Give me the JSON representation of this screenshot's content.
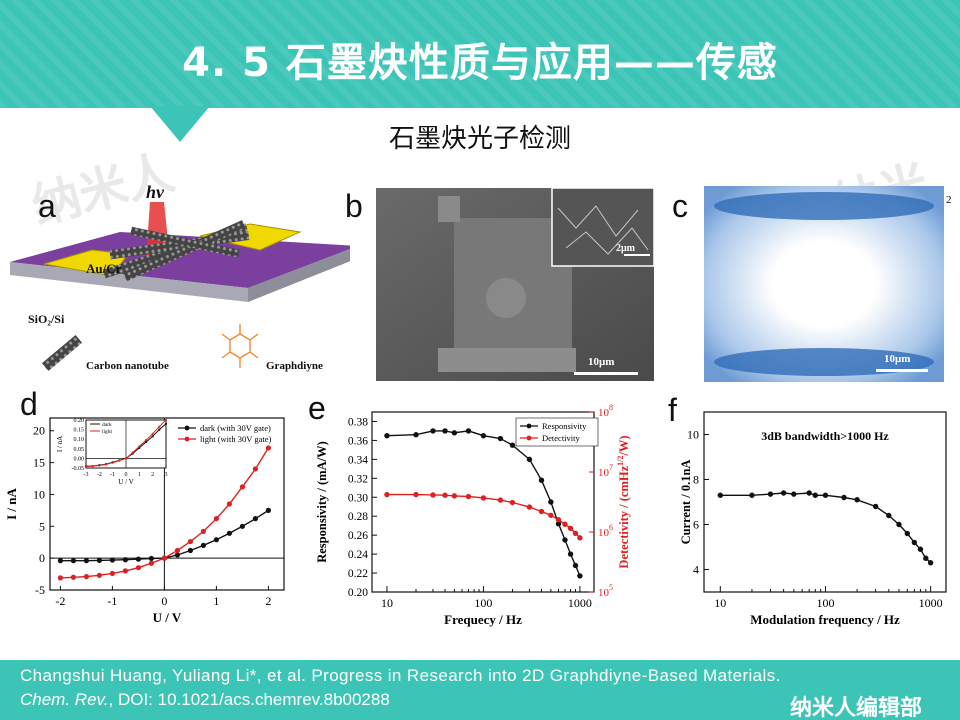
{
  "slide": {
    "title": "4. 5  石墨炔性质与应用——传感",
    "subtitle": "石墨炔光子检测"
  },
  "panels": {
    "a": "a",
    "b": "b",
    "c": "c",
    "d": "d",
    "e": "e",
    "f": "f"
  },
  "panel_a": {
    "hv": "hν",
    "electrode": "Au/Cr",
    "substrate": "SiO₂/Si",
    "cnt": "Carbon nanotube",
    "gdy": "Graphdiyne"
  },
  "panel_b": {
    "scale_main": "10μm",
    "scale_inset": "2μm"
  },
  "panel_c": {
    "scale": "10μm",
    "corner": "2"
  },
  "footer": {
    "line1": "Changshui Huang, Yuliang Li*, et al. Progress in Research into 2D Graphdiyne-Based Materials.",
    "journal": "Chem. Rev.",
    "doi": ", DOI: 10.1021/acs.chemrev.8b00288",
    "brand": "纳米人编辑部"
  },
  "watermark": "纳米人",
  "colors": {
    "banner": "#3cc5b7",
    "dark": "#111111",
    "light": "#e02020"
  },
  "chart_data": [
    {
      "panel": "d",
      "type": "line",
      "xlabel": "U / V",
      "ylabel": "I / nA",
      "xlim": [
        -2.2,
        2.3
      ],
      "ylim": [
        -5,
        22
      ],
      "xticks": [
        -2,
        -1,
        0,
        1,
        2
      ],
      "yticks": [
        -5,
        0,
        5,
        10,
        15,
        20
      ],
      "series": [
        {
          "name": "dark (with 30V gate)",
          "color": "#111111",
          "x": [
            -2,
            -1.75,
            -1.5,
            -1.25,
            -1,
            -0.75,
            -0.5,
            -0.25,
            0,
            0.25,
            0.5,
            0.75,
            1,
            1.25,
            1.5,
            1.75,
            2
          ],
          "y": [
            -0.4,
            -0.4,
            -0.4,
            -0.35,
            -0.3,
            -0.25,
            -0.15,
            -0.05,
            0,
            0.5,
            1.2,
            2,
            2.9,
            3.9,
            5,
            6.2,
            7.5
          ]
        },
        {
          "name": "light (with 30V gate)",
          "color": "#e02020",
          "x": [
            -2,
            -1.75,
            -1.5,
            -1.25,
            -1,
            -0.75,
            -0.5,
            -0.25,
            0,
            0.25,
            0.5,
            0.75,
            1,
            1.25,
            1.5,
            1.75,
            2
          ],
          "y": [
            -3.1,
            -3,
            -2.9,
            -2.7,
            -2.4,
            -2,
            -1.5,
            -0.8,
            0,
            1.2,
            2.6,
            4.2,
            6.2,
            8.5,
            11.2,
            14,
            17.3
          ]
        }
      ],
      "inset": {
        "xlabel": "U / V",
        "ylabel": "I / nA",
        "xlim": [
          -3,
          3
        ],
        "ylim": [
          -0.05,
          0.2
        ],
        "xticks": [
          -3,
          -2,
          -1,
          0,
          1,
          2,
          3
        ],
        "yticks": [
          -0.05,
          0,
          0.05,
          0.1,
          0.15,
          0.2
        ],
        "ytick_labels": [
          "-0.05",
          "0.00",
          "0.05",
          "0.10",
          "0.15",
          "0.20"
        ],
        "series": [
          {
            "name": "dark",
            "color": "#111111",
            "x": [
              -3,
              -2.5,
              -2,
              -1.5,
              -1,
              -0.5,
              0,
              0.5,
              1,
              1.5,
              2,
              2.5,
              3
            ],
            "y": [
              -0.04,
              -0.04,
              -0.035,
              -0.03,
              -0.02,
              -0.01,
              0,
              0.025,
              0.055,
              0.085,
              0.115,
              0.15,
              0.18
            ]
          },
          {
            "name": "light",
            "color": "#e02020",
            "x": [
              -3,
              -2.5,
              -2,
              -1.5,
              -1,
              -0.5,
              0,
              0.5,
              1,
              1.5,
              2,
              2.5,
              3
            ],
            "y": [
              -0.042,
              -0.04,
              -0.037,
              -0.032,
              -0.022,
              -0.012,
              0,
              0.03,
              0.062,
              0.095,
              0.128,
              0.165,
              0.2
            ]
          }
        ]
      }
    },
    {
      "panel": "e",
      "type": "line",
      "xlabel": "Frequecy / Hz",
      "ylabel": "Responsivity / (mA/W)",
      "y2label": "Detectivity / (cmHz1/2/W)",
      "xscale": "log",
      "xlim": [
        7,
        1400
      ],
      "ylim": [
        0.2,
        0.39
      ],
      "xticks": [
        10,
        100,
        1000
      ],
      "yticks": [
        0.2,
        0.22,
        0.24,
        0.26,
        0.28,
        0.3,
        0.32,
        0.34,
        0.36,
        0.38
      ],
      "y2scale": "log",
      "y2lim": [
        100000,
        100000000
      ],
      "y2ticks": [
        "10^5",
        "10^6",
        "10^7",
        "10^8"
      ],
      "series": [
        {
          "name": "Responsivity",
          "color": "#111111",
          "axis": "left",
          "x": [
            10,
            20,
            30,
            40,
            50,
            70,
            100,
            150,
            200,
            300,
            400,
            500,
            600,
            700,
            800,
            900,
            1000
          ],
          "y": [
            0.365,
            0.366,
            0.37,
            0.37,
            0.368,
            0.37,
            0.365,
            0.362,
            0.355,
            0.34,
            0.318,
            0.295,
            0.272,
            0.255,
            0.24,
            0.228,
            0.217
          ]
        },
        {
          "name": "Detectivity",
          "color": "#e02020",
          "axis": "right",
          "x": [
            10,
            20,
            30,
            40,
            50,
            70,
            100,
            150,
            200,
            300,
            400,
            500,
            600,
            700,
            800,
            900,
            1000
          ],
          "y": [
            4200000,
            4200000,
            4150000,
            4100000,
            4000000,
            3900000,
            3700000,
            3400000,
            3100000,
            2600000,
            2200000,
            1900000,
            1600000,
            1350000,
            1150000,
            950000,
            800000
          ]
        }
      ]
    },
    {
      "panel": "f",
      "type": "line",
      "title": "3dB bandwidth>1000 Hz",
      "xlabel": "Modulation frequency / Hz",
      "ylabel": "Current / 0.1nA",
      "xscale": "log",
      "xlim": [
        7,
        1400
      ],
      "ylim": [
        3,
        11
      ],
      "xticks": [
        10,
        100,
        1000
      ],
      "yticks": [
        4,
        6,
        8,
        10
      ],
      "series": [
        {
          "color": "#111111",
          "x": [
            10,
            20,
            30,
            40,
            50,
            70,
            80,
            100,
            150,
            200,
            300,
            400,
            500,
            600,
            700,
            800,
            900,
            1000
          ],
          "y": [
            7.3,
            7.3,
            7.35,
            7.4,
            7.35,
            7.4,
            7.3,
            7.3,
            7.2,
            7.1,
            6.8,
            6.4,
            6,
            5.6,
            5.2,
            4.9,
            4.5,
            4.3
          ]
        }
      ]
    }
  ]
}
